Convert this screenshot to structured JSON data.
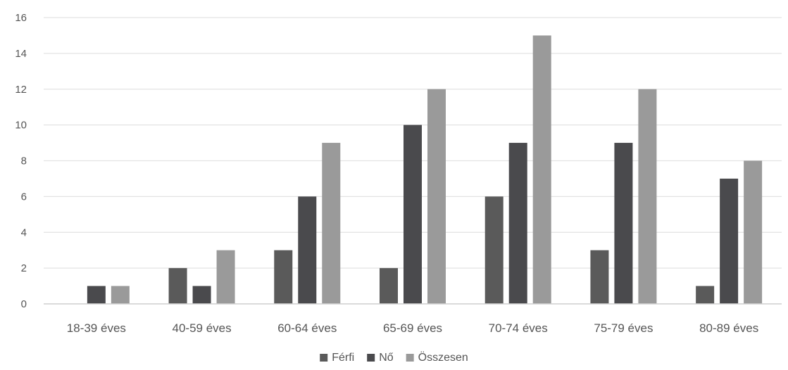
{
  "chart_data": {
    "type": "bar",
    "categories": [
      "18-39 éves",
      "40-59 éves",
      "60-64 éves",
      "65-69 éves",
      "70-74 éves",
      "75-79 éves",
      "80-89 éves"
    ],
    "series": [
      {
        "name": "Férfi",
        "values": [
          0,
          2,
          3,
          2,
          6,
          3,
          1
        ],
        "color": "#5a5a5a"
      },
      {
        "name": "Nő",
        "values": [
          1,
          1,
          6,
          10,
          9,
          9,
          7
        ],
        "color": "#4a4a4d"
      },
      {
        "name": "Összesen",
        "values": [
          1,
          3,
          9,
          12,
          15,
          12,
          8
        ],
        "color": "#9a9a9a"
      }
    ],
    "ylim": [
      0,
      16
    ],
    "yticks": [
      0,
      2,
      4,
      6,
      8,
      10,
      12,
      14,
      16
    ],
    "grid": true,
    "legend_position": "bottom-center"
  }
}
